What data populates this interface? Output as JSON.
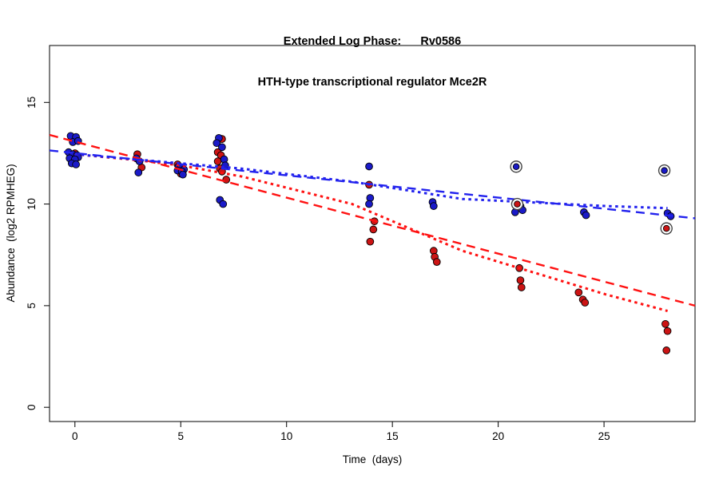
{
  "title": {
    "line1": "Extended Log Phase:      Rv0586",
    "line2": "HTH-type transcriptional regulator Mce2R"
  },
  "chart_data": {
    "type": "scatter",
    "xlabel": "Time  (days)",
    "ylabel": "Abundance  (log2 RPMHEG)",
    "xlim": [
      -1.2,
      29.3
    ],
    "ylim": [
      -0.7,
      17.8
    ],
    "x_ticks": [
      0,
      5,
      10,
      15,
      20,
      25
    ],
    "y_ticks": [
      0,
      5,
      10,
      15
    ],
    "grid": false,
    "colors": {
      "red_point": "#cc1414",
      "blue_point": "#1a1ac8",
      "red_line": "#ff1111",
      "blue_line": "#2222ee",
      "point_edge": "#000000",
      "ring": "#444444",
      "axis": "#000000"
    },
    "series": [
      {
        "name": "red-points",
        "color": "red_point",
        "points": [
          [
            0.0,
            12.5
          ],
          [
            2.95,
            12.45
          ],
          [
            3.15,
            11.8
          ],
          [
            4.85,
            11.95
          ],
          [
            5.1,
            11.75
          ],
          [
            5.0,
            11.5
          ],
          [
            6.95,
            13.2
          ],
          [
            6.75,
            12.55
          ],
          [
            6.9,
            12.4
          ],
          [
            6.75,
            12.1
          ],
          [
            6.85,
            11.75
          ],
          [
            6.95,
            11.6
          ],
          [
            7.15,
            11.2
          ],
          [
            13.9,
            10.95
          ],
          [
            14.15,
            9.15
          ],
          [
            14.1,
            8.75
          ],
          [
            13.95,
            8.15
          ],
          [
            16.95,
            7.7
          ],
          [
            17.0,
            7.4
          ],
          [
            17.1,
            7.15
          ],
          [
            21.0,
            6.85
          ],
          [
            21.05,
            6.25
          ],
          [
            21.1,
            5.9
          ],
          [
            23.8,
            5.65
          ],
          [
            24.0,
            5.3
          ],
          [
            24.1,
            5.15
          ],
          [
            27.9,
            4.1
          ],
          [
            28.0,
            3.75
          ],
          [
            27.95,
            2.8
          ]
        ]
      },
      {
        "name": "blue-points",
        "color": "blue_point",
        "points": [
          [
            -0.2,
            13.35
          ],
          [
            0.05,
            13.3
          ],
          [
            -0.1,
            13.05
          ],
          [
            0.15,
            13.1
          ],
          [
            -0.3,
            12.55
          ],
          [
            -0.1,
            12.45
          ],
          [
            0.1,
            12.4
          ],
          [
            -0.25,
            12.25
          ],
          [
            0.15,
            12.3
          ],
          [
            0.0,
            12.2
          ],
          [
            -0.15,
            12.0
          ],
          [
            0.05,
            11.95
          ],
          [
            2.9,
            12.25
          ],
          [
            3.05,
            12.1
          ],
          [
            3.0,
            11.55
          ],
          [
            4.9,
            11.85
          ],
          [
            5.0,
            11.8
          ],
          [
            4.85,
            11.65
          ],
          [
            5.15,
            11.7
          ],
          [
            5.05,
            11.6
          ],
          [
            5.1,
            11.45
          ],
          [
            6.8,
            13.25
          ],
          [
            6.7,
            13.0
          ],
          [
            6.95,
            12.8
          ],
          [
            7.05,
            12.2
          ],
          [
            7.1,
            11.9
          ],
          [
            6.85,
            10.2
          ],
          [
            7.0,
            10.0
          ],
          [
            13.9,
            11.85
          ],
          [
            13.95,
            10.3
          ],
          [
            13.9,
            10.0
          ],
          [
            16.9,
            10.1
          ],
          [
            16.95,
            9.9
          ],
          [
            21.05,
            9.9
          ],
          [
            21.15,
            9.7
          ],
          [
            20.8,
            9.6
          ],
          [
            24.05,
            9.6
          ],
          [
            24.15,
            9.45
          ],
          [
            28.0,
            9.55
          ],
          [
            28.15,
            9.4
          ]
        ]
      }
    ],
    "circled_points": [
      {
        "x": 20.85,
        "y": 11.84,
        "color": "blue_point"
      },
      {
        "x": 20.9,
        "y": 10.0,
        "color": "red_point"
      },
      {
        "x": 27.85,
        "y": 11.65,
        "color": "blue_point"
      },
      {
        "x": 27.95,
        "y": 8.8,
        "color": "red_point"
      }
    ],
    "lines": [
      {
        "name": "red-dashed-fit",
        "color": "red_line",
        "style": "dashed",
        "points": [
          [
            -1.2,
            13.4
          ],
          [
            29.3,
            5.0
          ]
        ]
      },
      {
        "name": "red-dotted-fit",
        "color": "red_line",
        "style": "dotted",
        "points": [
          [
            0,
            12.45
          ],
          [
            3,
            12.15
          ],
          [
            5,
            11.9
          ],
          [
            7.9,
            11.35
          ],
          [
            13.1,
            10.0
          ],
          [
            18.3,
            7.7
          ],
          [
            25.1,
            5.55
          ],
          [
            28,
            4.74
          ]
        ]
      },
      {
        "name": "blue-dashed-fit",
        "color": "blue_line",
        "style": "dashed",
        "points": [
          [
            -1.2,
            12.64
          ],
          [
            29.3,
            9.3
          ]
        ]
      },
      {
        "name": "blue-dotted-fit",
        "color": "blue_line",
        "style": "dotted",
        "points": [
          [
            0,
            12.45
          ],
          [
            7.8,
            11.75
          ],
          [
            13.1,
            11.1
          ],
          [
            18.3,
            10.25
          ],
          [
            25.1,
            9.9
          ],
          [
            28,
            9.8
          ]
        ]
      }
    ]
  }
}
